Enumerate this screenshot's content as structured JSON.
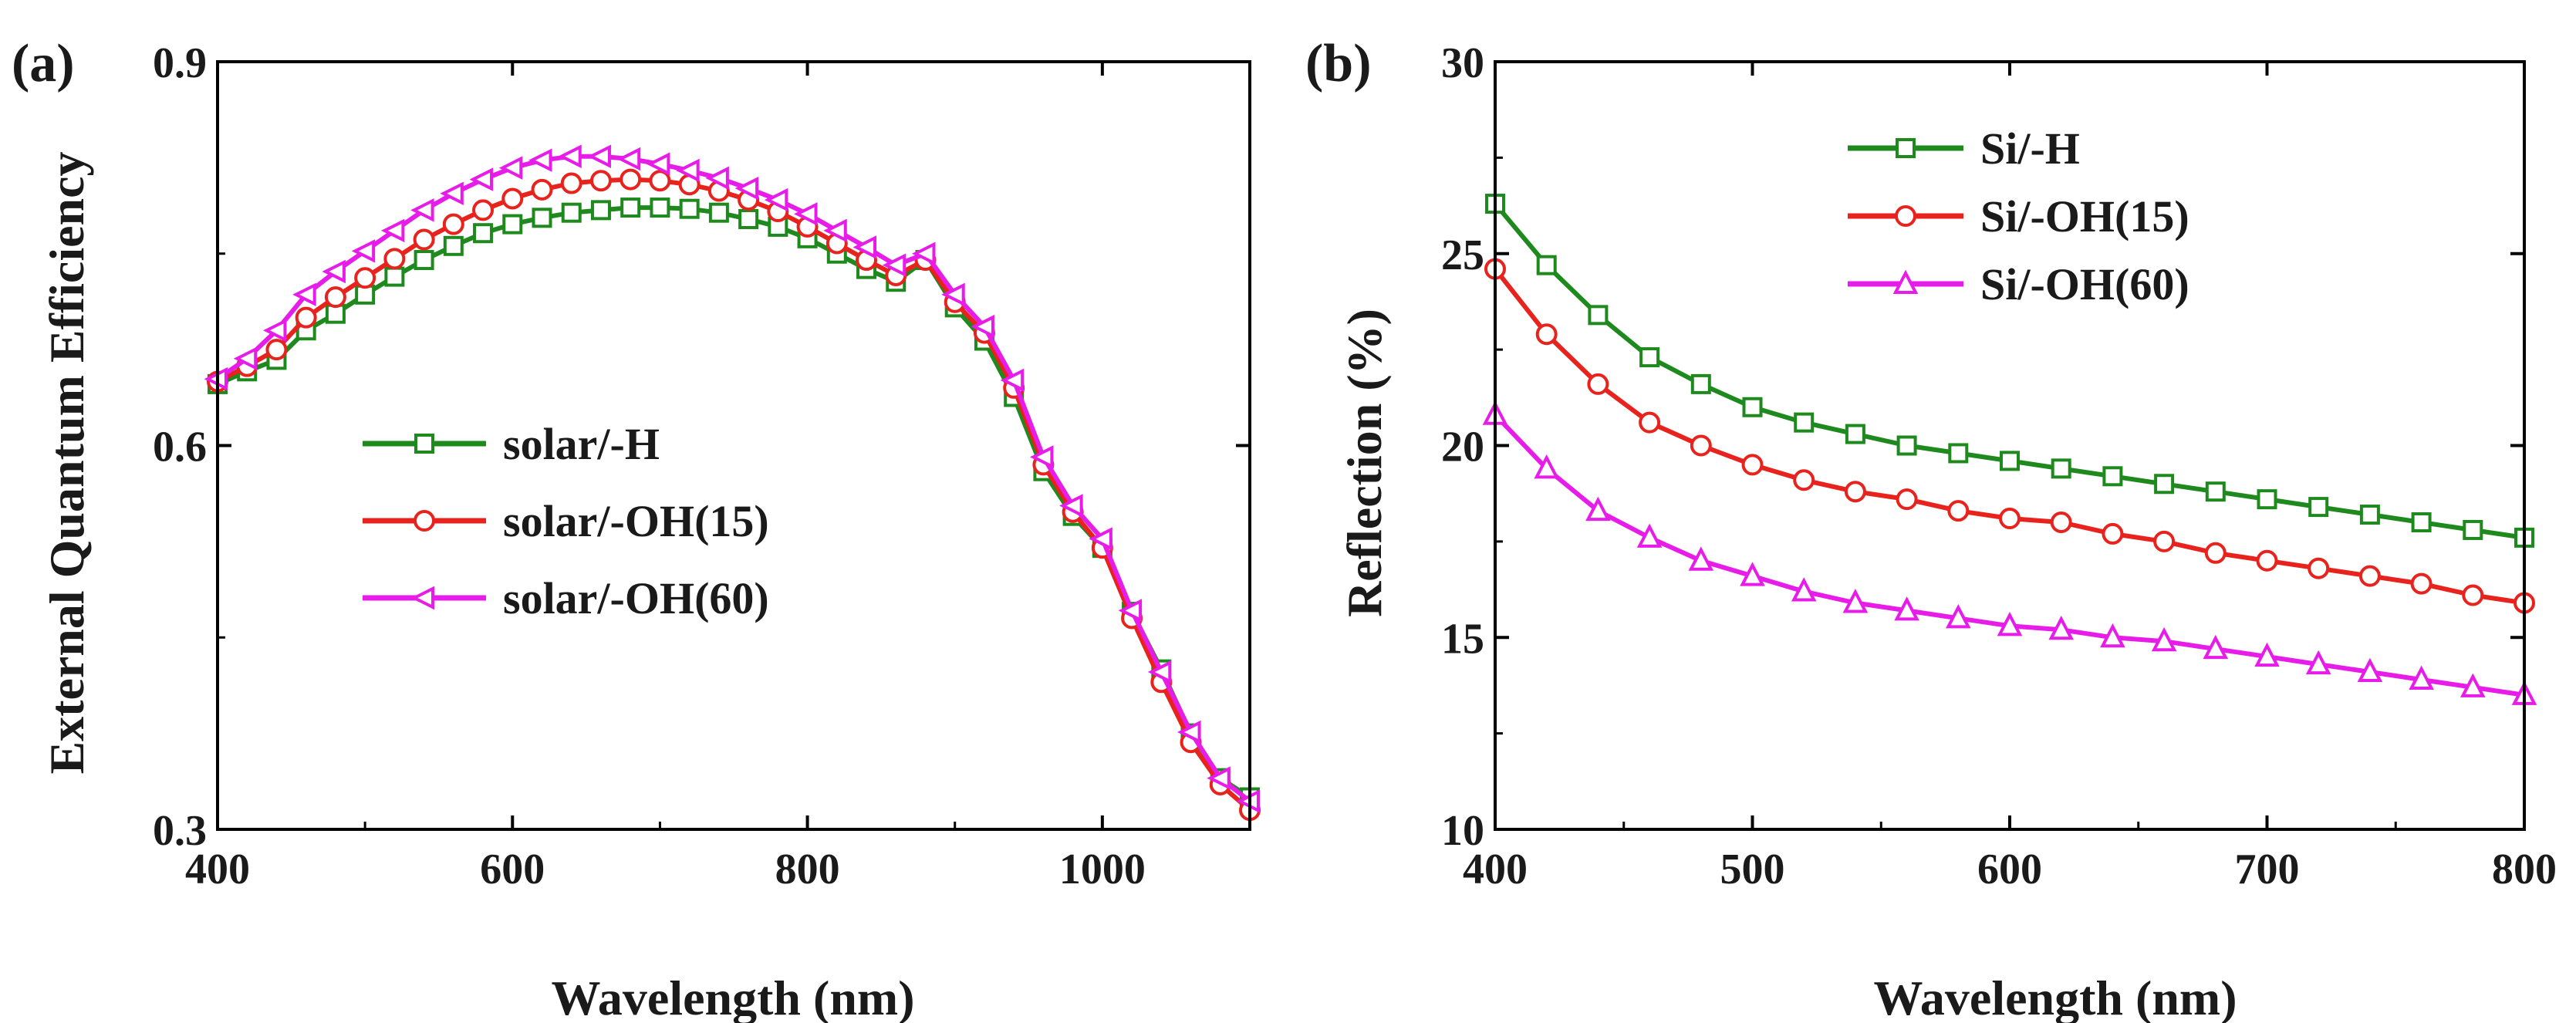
{
  "chart_data": [
    {
      "panel": "(a)",
      "type": "line",
      "xlabel": "Wavelength (nm)",
      "ylabel": "External Quantum Efficiency",
      "xlim": [
        400,
        1100
      ],
      "ylim": [
        0.3,
        0.9
      ],
      "xticks": [
        "400",
        "600",
        "800",
        "1000"
      ],
      "yticks": [
        "0.3",
        "0.6",
        "0.9"
      ],
      "legend_position": "center-left",
      "series": [
        {
          "name": "solar/-H",
          "color": "#1e8a1e",
          "marker": "square",
          "x": [
            400,
            420,
            440,
            460,
            480,
            500,
            520,
            540,
            560,
            580,
            600,
            620,
            640,
            660,
            680,
            700,
            720,
            740,
            760,
            780,
            800,
            820,
            840,
            860,
            880,
            900,
            920,
            940,
            960,
            980,
            1000,
            1020,
            1040,
            1060,
            1080,
            1100
          ],
          "values": [
            0.648,
            0.658,
            0.667,
            0.69,
            0.703,
            0.718,
            0.732,
            0.745,
            0.756,
            0.766,
            0.773,
            0.778,
            0.782,
            0.784,
            0.786,
            0.786,
            0.785,
            0.782,
            0.777,
            0.771,
            0.762,
            0.75,
            0.738,
            0.728,
            0.745,
            0.708,
            0.682,
            0.638,
            0.58,
            0.545,
            0.52,
            0.47,
            0.425,
            0.375,
            0.34,
            0.325
          ]
        },
        {
          "name": "solar/-OH(15)",
          "color": "#e8221c",
          "marker": "circle",
          "x": [
            400,
            420,
            440,
            460,
            480,
            500,
            520,
            540,
            560,
            580,
            600,
            620,
            640,
            660,
            680,
            700,
            720,
            740,
            760,
            780,
            800,
            820,
            840,
            860,
            880,
            900,
            920,
            940,
            960,
            980,
            1000,
            1020,
            1040,
            1060,
            1080,
            1100
          ],
          "values": [
            0.65,
            0.662,
            0.675,
            0.7,
            0.716,
            0.731,
            0.746,
            0.761,
            0.773,
            0.784,
            0.793,
            0.8,
            0.805,
            0.807,
            0.808,
            0.807,
            0.804,
            0.799,
            0.792,
            0.783,
            0.771,
            0.758,
            0.745,
            0.733,
            0.745,
            0.712,
            0.688,
            0.645,
            0.585,
            0.548,
            0.52,
            0.465,
            0.415,
            0.368,
            0.335,
            0.315
          ]
        },
        {
          "name": "solar/-OH(60)",
          "color": "#e81ce8",
          "marker": "triangle-left",
          "x": [
            400,
            420,
            440,
            460,
            480,
            500,
            520,
            540,
            560,
            580,
            600,
            620,
            640,
            660,
            680,
            700,
            720,
            740,
            760,
            780,
            800,
            820,
            840,
            860,
            880,
            900,
            920,
            940,
            960,
            980,
            1000,
            1020,
            1040,
            1060,
            1080,
            1100
          ],
          "values": [
            0.652,
            0.668,
            0.69,
            0.718,
            0.736,
            0.752,
            0.768,
            0.784,
            0.797,
            0.808,
            0.817,
            0.823,
            0.826,
            0.826,
            0.824,
            0.82,
            0.815,
            0.809,
            0.801,
            0.792,
            0.781,
            0.768,
            0.755,
            0.741,
            0.75,
            0.718,
            0.693,
            0.651,
            0.591,
            0.553,
            0.527,
            0.471,
            0.423,
            0.376,
            0.34,
            0.322
          ]
        }
      ]
    },
    {
      "panel": "(b)",
      "type": "line",
      "xlabel": "Wavelength (nm)",
      "ylabel": "Reflection (%)",
      "xlim": [
        400,
        800
      ],
      "ylim": [
        10,
        30
      ],
      "xticks": [
        "400",
        "500",
        "600",
        "700",
        "800"
      ],
      "yticks": [
        "10",
        "15",
        "20",
        "25",
        "30"
      ],
      "legend_position": "top-center",
      "series": [
        {
          "name": "Si/-H",
          "color": "#1e8a1e",
          "marker": "square",
          "x": [
            400,
            420,
            440,
            460,
            480,
            500,
            520,
            540,
            560,
            580,
            600,
            620,
            640,
            660,
            680,
            700,
            720,
            740,
            760,
            780,
            800
          ],
          "values": [
            26.3,
            24.7,
            23.4,
            22.3,
            21.6,
            21.0,
            20.6,
            20.3,
            20.0,
            19.8,
            19.6,
            19.4,
            19.2,
            19.0,
            18.8,
            18.6,
            18.4,
            18.2,
            18.0,
            17.8,
            17.6
          ]
        },
        {
          "name": "Si/-OH(15)",
          "color": "#e8221c",
          "marker": "circle",
          "x": [
            400,
            420,
            440,
            460,
            480,
            500,
            520,
            540,
            560,
            580,
            600,
            620,
            640,
            660,
            680,
            700,
            720,
            740,
            760,
            780,
            800
          ],
          "values": [
            24.6,
            22.9,
            21.6,
            20.6,
            20.0,
            19.5,
            19.1,
            18.8,
            18.6,
            18.3,
            18.1,
            18.0,
            17.7,
            17.5,
            17.2,
            17.0,
            16.8,
            16.6,
            16.4,
            16.1,
            15.9
          ]
        },
        {
          "name": "Si/-OH(60)",
          "color": "#e81ce8",
          "marker": "triangle-up",
          "x": [
            400,
            420,
            440,
            460,
            480,
            500,
            520,
            540,
            560,
            580,
            600,
            620,
            640,
            660,
            680,
            700,
            720,
            740,
            760,
            780,
            800
          ],
          "values": [
            20.8,
            19.4,
            18.3,
            17.6,
            17.0,
            16.6,
            16.2,
            15.9,
            15.7,
            15.5,
            15.3,
            15.2,
            15.0,
            14.9,
            14.7,
            14.5,
            14.3,
            14.1,
            13.9,
            13.7,
            13.5
          ]
        }
      ]
    }
  ]
}
